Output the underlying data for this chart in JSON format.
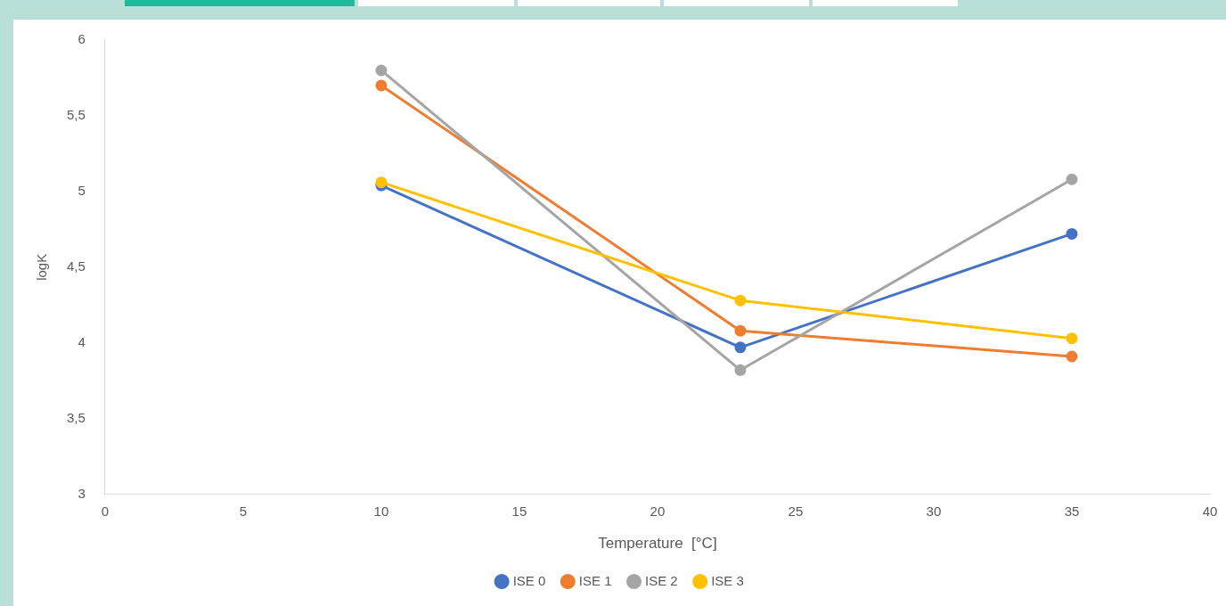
{
  "chart_data": {
    "type": "line",
    "xlabel": "Temperature  [°C]",
    "ylabel": "logK",
    "x": [
      10,
      23,
      35
    ],
    "series": [
      {
        "name": "ISE 0",
        "color": "#4472c4",
        "values": [
          5.04,
          3.97,
          4.72
        ]
      },
      {
        "name": "ISE 1",
        "color": "#ed7d31",
        "values": [
          5.7,
          4.08,
          3.91
        ]
      },
      {
        "name": "ISE 2",
        "color": "#a5a5a5",
        "values": [
          5.8,
          3.82,
          5.08
        ]
      },
      {
        "name": "ISE 3",
        "color": "#ffc000",
        "values": [
          5.06,
          4.28,
          4.03
        ]
      }
    ],
    "xlim": [
      0,
      40
    ],
    "xticks": [
      0,
      5,
      10,
      15,
      20,
      25,
      30,
      35,
      40
    ],
    "ylim": [
      3,
      6
    ],
    "yticks": [
      3,
      {
        "value": 3.5,
        "label": "3,5"
      },
      4,
      {
        "value": 4.5,
        "label": "4,5"
      },
      5,
      {
        "value": 5.5,
        "label": "5,5"
      },
      6
    ],
    "legend": "bottom",
    "marker": "circle",
    "line_style": "solid",
    "grid": false
  }
}
